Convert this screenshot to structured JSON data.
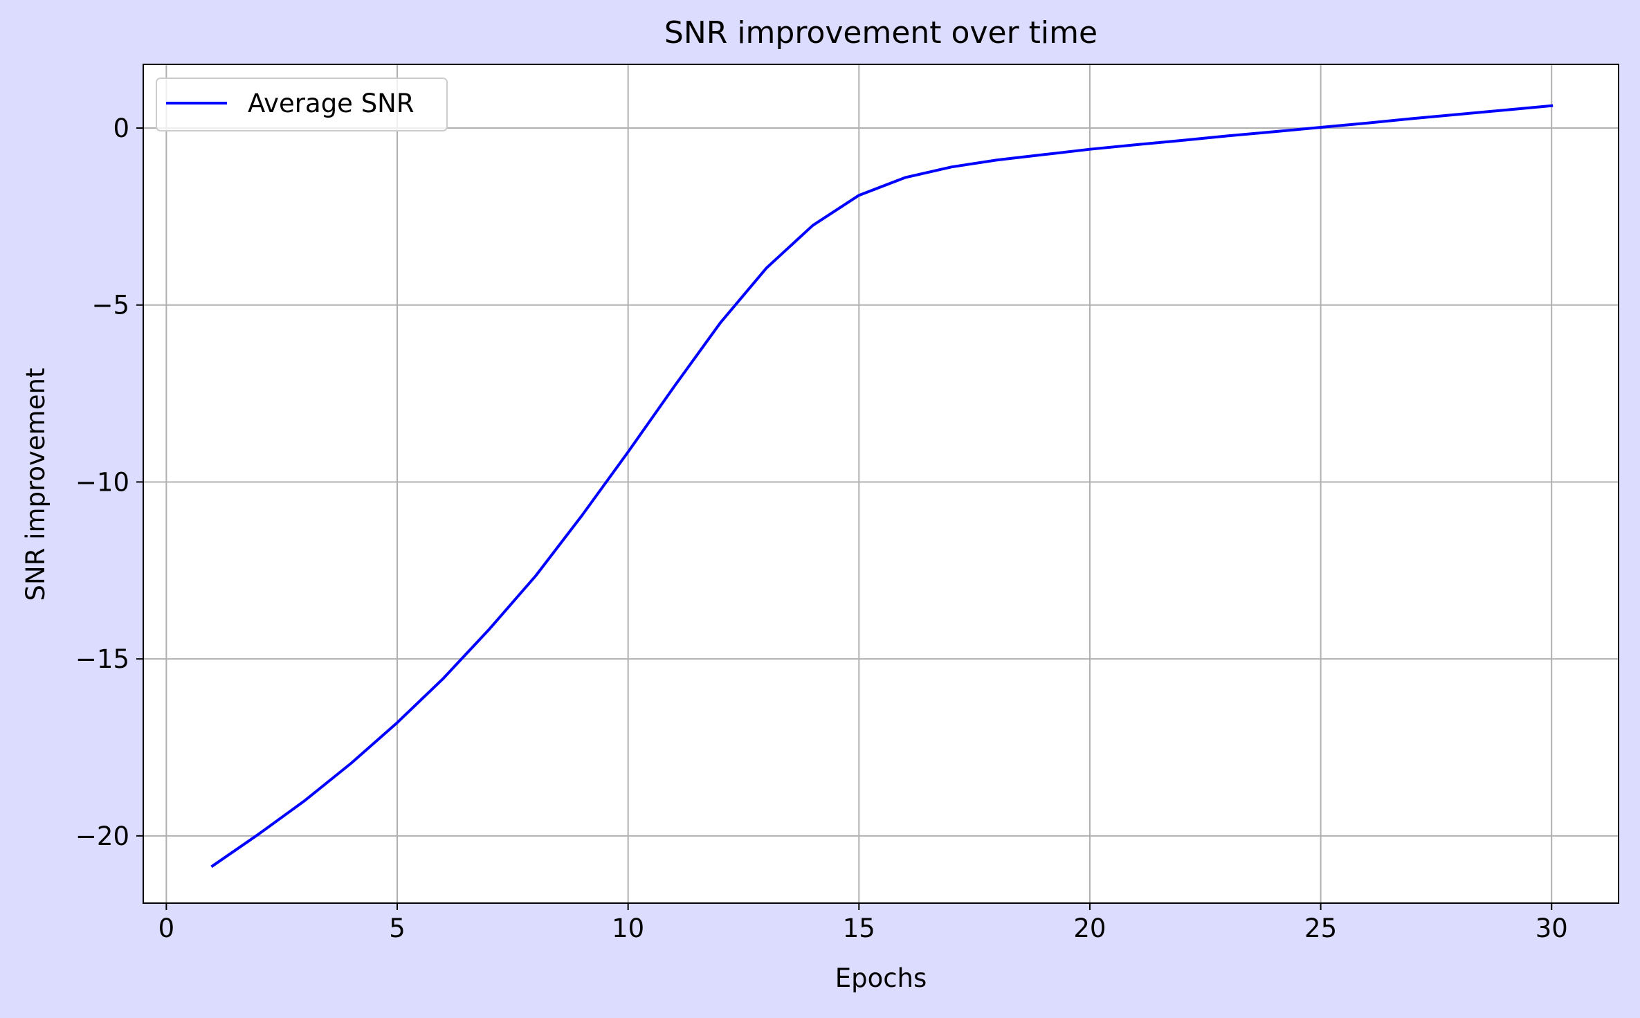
{
  "colors": {
    "figure_background": "#dcdcfe",
    "plot_background": "#ffffff",
    "series_line": "#0000ff",
    "grid": "#b0b0b0",
    "axes": "#000000"
  },
  "chart_data": {
    "type": "line",
    "title": "SNR improvement over time",
    "xlabel": "Epochs",
    "ylabel": "SNR improvement",
    "xlim": [
      -0.5,
      31.45
    ],
    "ylim": [
      -21.9,
      1.8
    ],
    "xticks": [
      0,
      5,
      10,
      15,
      20,
      25,
      30
    ],
    "xtick_labels": [
      "0",
      "5",
      "10",
      "15",
      "20",
      "25",
      "30"
    ],
    "yticks": [
      0,
      -5,
      -10,
      -15,
      -20
    ],
    "ytick_labels": [
      "0",
      "−5",
      "−10",
      "−15",
      "−20"
    ],
    "grid": true,
    "legend_position": "upper-left",
    "series": [
      {
        "name": "Average SNR",
        "x": [
          1,
          2,
          3,
          4,
          5,
          6,
          7,
          8,
          9,
          10,
          11,
          12,
          13,
          14,
          15,
          16,
          17,
          18,
          19,
          20,
          21,
          22,
          23,
          24,
          25,
          26,
          27,
          28,
          29,
          30
        ],
        "y": [
          -20.85,
          -19.95,
          -19.0,
          -17.95,
          -16.8,
          -15.55,
          -14.15,
          -12.65,
          -10.95,
          -9.15,
          -7.3,
          -5.5,
          -3.95,
          -2.75,
          -1.9,
          -1.4,
          -1.1,
          -0.9,
          -0.75,
          -0.6,
          -0.47,
          -0.35,
          -0.22,
          -0.1,
          0.02,
          0.14,
          0.27,
          0.39,
          0.51,
          0.63
        ]
      }
    ]
  }
}
